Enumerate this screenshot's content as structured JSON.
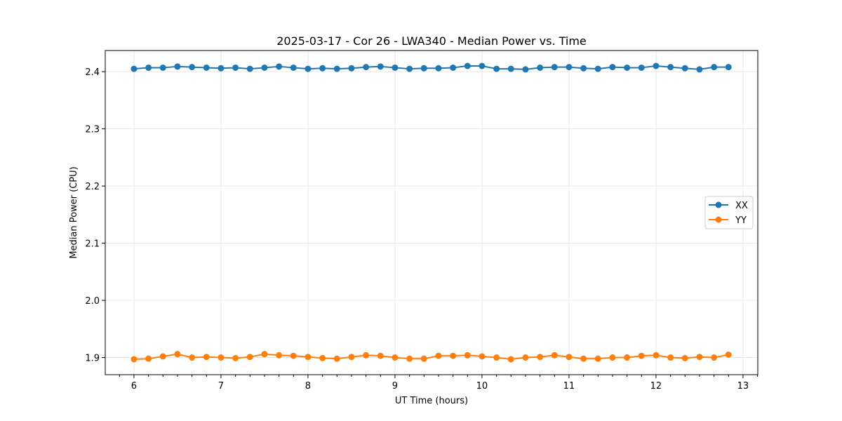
{
  "chart_data": {
    "type": "line",
    "title": "2025-03-17 - Cor 26 - LWA340 - Median Power vs. Time",
    "xlabel": "UT Time (hours)",
    "ylabel": "Median Power (CPU)",
    "xlim": [
      5.67,
      13.17
    ],
    "ylim": [
      1.87,
      2.437
    ],
    "xticks": [
      6,
      7,
      8,
      9,
      10,
      11,
      12,
      13
    ],
    "yticks": [
      1.9,
      2.0,
      2.1,
      2.2,
      2.3,
      2.4
    ],
    "ytick_labels": [
      "1.9",
      "2.0",
      "2.1",
      "2.2",
      "2.3",
      "2.4"
    ],
    "grid": true,
    "legend_position": "center-right",
    "x": [
      6.0,
      6.167,
      6.333,
      6.5,
      6.667,
      6.833,
      7.0,
      7.167,
      7.333,
      7.5,
      7.667,
      7.833,
      8.0,
      8.167,
      8.333,
      8.5,
      8.667,
      8.833,
      9.0,
      9.167,
      9.333,
      9.5,
      9.667,
      9.833,
      10.0,
      10.167,
      10.333,
      10.5,
      10.667,
      10.833,
      11.0,
      11.167,
      11.333,
      11.5,
      11.667,
      11.833,
      12.0,
      12.167,
      12.333,
      12.5,
      12.667,
      12.833
    ],
    "series": [
      {
        "name": "XX",
        "color": "#1f77b4",
        "values": [
          2.405,
          2.407,
          2.407,
          2.409,
          2.408,
          2.407,
          2.406,
          2.407,
          2.405,
          2.407,
          2.409,
          2.407,
          2.405,
          2.406,
          2.405,
          2.406,
          2.408,
          2.409,
          2.407,
          2.405,
          2.406,
          2.406,
          2.407,
          2.41,
          2.41,
          2.405,
          2.405,
          2.404,
          2.407,
          2.408,
          2.408,
          2.406,
          2.405,
          2.408,
          2.407,
          2.407,
          2.41,
          2.408,
          2.406,
          2.404,
          2.408,
          2.408
        ]
      },
      {
        "name": "YY",
        "color": "#ff7f0e",
        "values": [
          1.897,
          1.898,
          1.902,
          1.906,
          1.9,
          1.901,
          1.9,
          1.899,
          1.901,
          1.906,
          1.904,
          1.903,
          1.901,
          1.899,
          1.898,
          1.901,
          1.904,
          1.903,
          1.9,
          1.898,
          1.898,
          1.903,
          1.903,
          1.904,
          1.902,
          1.9,
          1.897,
          1.9,
          1.901,
          1.904,
          1.901,
          1.898,
          1.898,
          1.9,
          1.9,
          1.903,
          1.904,
          1.9,
          1.899,
          1.901,
          1.9,
          1.905
        ]
      }
    ]
  }
}
